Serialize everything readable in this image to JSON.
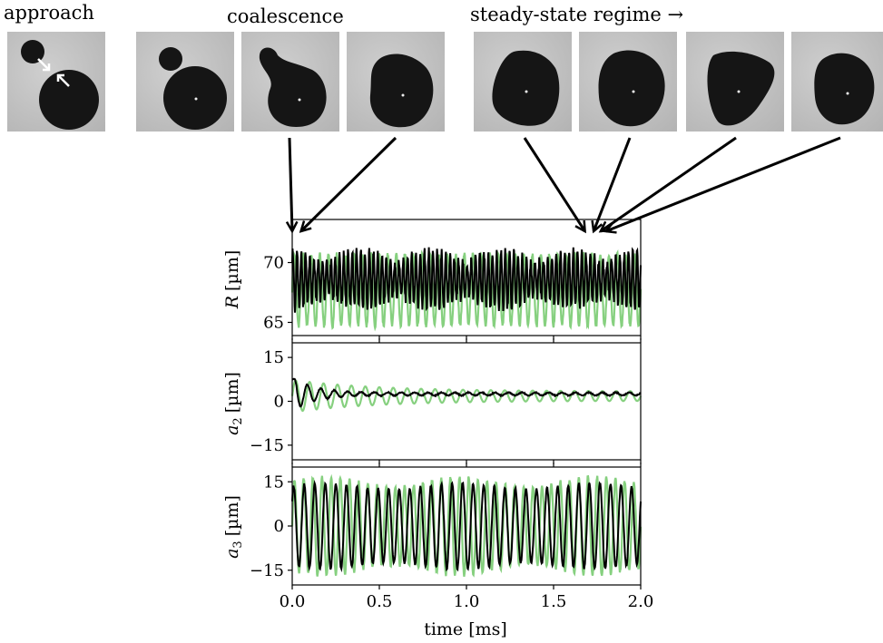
{
  "header_labels": {
    "approach": "approach",
    "coalescence": "coalescence",
    "steady": "steady-state regime →"
  },
  "frames": [
    {
      "phase": "approach",
      "shape": "two-drops-apart"
    },
    {
      "phase": "coalescence",
      "shape": "two-drops-touching"
    },
    {
      "phase": "coalescence",
      "shape": "neck"
    },
    {
      "phase": "coalescence",
      "shape": "rounded-blob"
    },
    {
      "phase": "steady-state",
      "shape": "triangle-left"
    },
    {
      "phase": "steady-state",
      "shape": "rounded-blob"
    },
    {
      "phase": "steady-state",
      "shape": "triangle-up"
    },
    {
      "phase": "steady-state",
      "shape": "round"
    }
  ],
  "arrow_targets_ms": [
    0.0,
    0.05,
    1.68,
    1.73,
    1.77,
    1.8
  ],
  "colors": {
    "black_series": "#000000",
    "green_series": "#86d07f",
    "drop": "#151515",
    "frame_bg": "#c2c2c2"
  },
  "chart_data": [
    {
      "type": "line",
      "ylabel": "R [µm]",
      "ylabel_var": "R",
      "ylabel_unit": "[µm]",
      "ylim": [
        63.9,
        73.6
      ],
      "yticks": [
        65,
        70
      ],
      "xlim": [
        0.0,
        2.0
      ],
      "xticks": [
        0.0,
        0.5,
        1.0,
        1.5,
        2.0
      ],
      "grid": false,
      "series": [
        {
          "color": "#86d07f",
          "model": {
            "mean": 67.7,
            "amp": 3.0,
            "freq_per_ms": 20.5,
            "decay_ms": 0,
            "jitter": 0.4
          }
        },
        {
          "color": "#000000",
          "model": {
            "mean": 68.6,
            "amp": 2.4,
            "freq_per_ms": 41.0,
            "decay_ms": 0,
            "jitter": 0.8,
            "beat_per_ms": 2.5
          }
        }
      ]
    },
    {
      "type": "line",
      "ylabel": "a2 [µm]",
      "ylabel_var": "a",
      "ylabel_sub": "2",
      "ylabel_unit": "[µm]",
      "ylim": [
        -20,
        20
      ],
      "yticks": [
        -15,
        0,
        15
      ],
      "ytick_labels": [
        "−15",
        "0",
        "15"
      ],
      "xlim": [
        0.0,
        2.0
      ],
      "xticks": [
        0.0,
        0.5,
        1.0,
        1.5,
        2.0
      ],
      "grid": false,
      "series": [
        {
          "color": "#86d07f",
          "model": {
            "mean": 1.8,
            "amp": 5.5,
            "freq_per_ms": 12.5,
            "decay_ms": 0.5,
            "floor_amp": 1.6,
            "jitter": 0.0
          }
        },
        {
          "color": "#000000",
          "model": {
            "mean": 2.5,
            "amp": 6.0,
            "freq_per_ms": 13.0,
            "decay_ms": 0.12,
            "floor_amp": 0.5,
            "jitter": 0.3,
            "start": 7.5
          }
        }
      ]
    },
    {
      "type": "line",
      "ylabel": "a3 [µm]",
      "ylabel_var": "a",
      "ylabel_sub": "3",
      "ylabel_unit": "[µm]",
      "ylim": [
        -20,
        20
      ],
      "yticks": [
        -15,
        0,
        15
      ],
      "ytick_labels": [
        "−15",
        "0",
        "15"
      ],
      "xlim": [
        0.0,
        2.0
      ],
      "xticks": [
        0.0,
        0.5,
        1.0,
        1.5,
        2.0
      ],
      "xtick_labels": [
        "0.0",
        "0.5",
        "1.0",
        "1.5",
        "2.0"
      ],
      "xlabel": "time [ms]",
      "grid": false,
      "series": [
        {
          "color": "#86d07f",
          "model": {
            "mean": 0,
            "amp": 15.0,
            "freq_per_ms": 19.0,
            "decay_ms": 0,
            "jitter": 1.2,
            "mod": 0.12
          }
        },
        {
          "color": "#000000",
          "model": {
            "mean": 0,
            "amp": 13.5,
            "freq_per_ms": 16.5,
            "decay_ms": 0,
            "jitter": 0.8,
            "mod": 0.08
          }
        }
      ]
    }
  ]
}
